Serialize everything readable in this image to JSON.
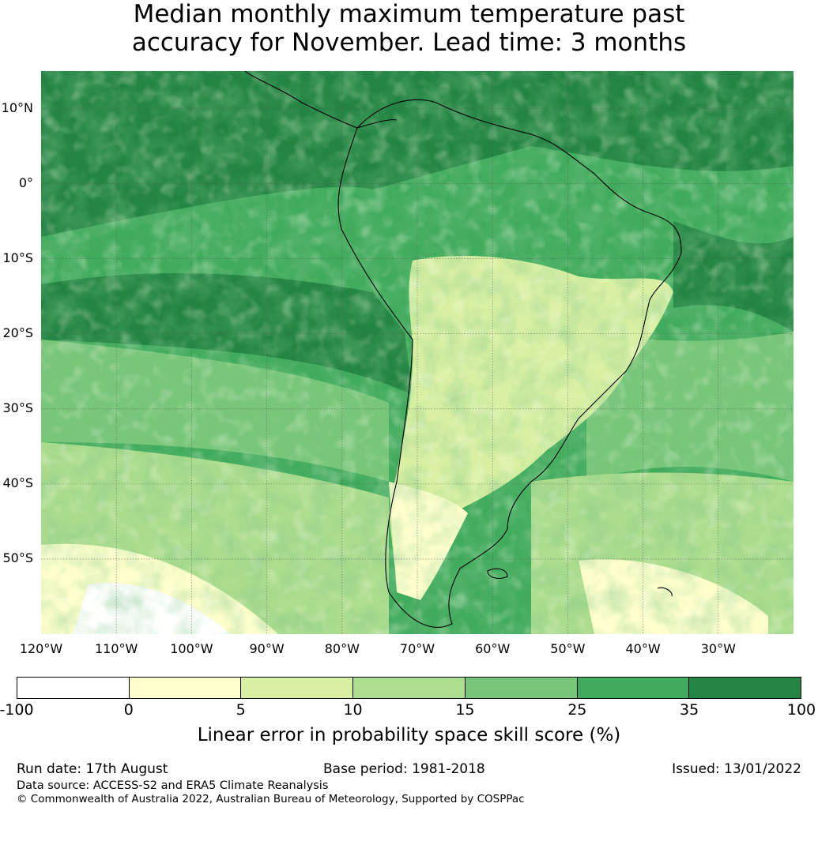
{
  "title_line1": "Median monthly maximum temperature past",
  "title_line2": "accuracy for November. Lead time: 3 months",
  "map": {
    "lon_range": [
      -120,
      -20
    ],
    "lat_range": [
      -60,
      15
    ],
    "lat_labels": [
      {
        "text": "10°N",
        "lat": 10
      },
      {
        "text": "0°",
        "lat": 0
      },
      {
        "text": "10°S",
        "lat": -10
      },
      {
        "text": "20°S",
        "lat": -20
      },
      {
        "text": "30°S",
        "lat": -30
      },
      {
        "text": "40°S",
        "lat": -40
      },
      {
        "text": "50°S",
        "lat": -50
      }
    ],
    "lon_labels": [
      {
        "text": "120°W",
        "lon": -120
      },
      {
        "text": "110°W",
        "lon": -110
      },
      {
        "text": "100°W",
        "lon": -100
      },
      {
        "text": "90°W",
        "lon": -90
      },
      {
        "text": "80°W",
        "lon": -80
      },
      {
        "text": "70°W",
        "lon": -70
      },
      {
        "text": "60°W",
        "lon": -60
      },
      {
        "text": "50°W",
        "lon": -50
      },
      {
        "text": "40°W",
        "lon": -40
      },
      {
        "text": "30°W",
        "lon": -30
      }
    ],
    "gridlines": true
  },
  "colorbar": {
    "ticks": [
      "-100",
      "0",
      "5",
      "10",
      "15",
      "25",
      "35",
      "100"
    ],
    "colors": [
      "#ffffff",
      "#ffffcc",
      "#d9f0a3",
      "#addd8e",
      "#78c679",
      "#41ab5d",
      "#238443"
    ],
    "label": "Linear error in probability space skill score (%)"
  },
  "footer": {
    "run_date": "Run date: 17th August",
    "base_period": "Base period: 1981-2018",
    "issued": "Issued: 13/01/2022",
    "data_source": "Data source: ACCESS-S2 and ERA5 Climate Reanalysis",
    "copyright": "© Commonwealth of Australia 2022, Australian Bureau of Meteorology, Supported by COSPPac"
  }
}
